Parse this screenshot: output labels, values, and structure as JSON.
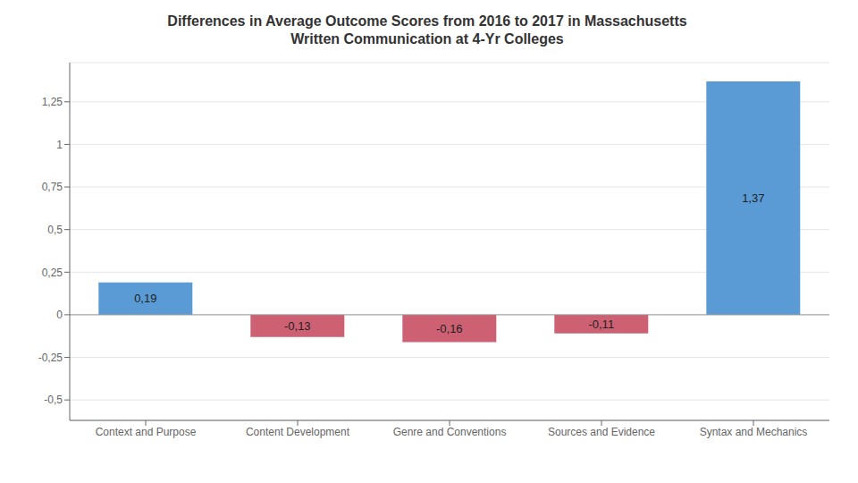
{
  "chart_data": {
    "type": "bar",
    "title": "Differences in Average Outcome Scores from 2016 to 2017 in Massachusetts\nWritten Communication at 4-Yr Colleges",
    "categories": [
      "Context and Purpose",
      "Content Development",
      "Genre and Conventions",
      "Sources and Evidence",
      "Syntax and Mechanics"
    ],
    "values": [
      0.19,
      -0.13,
      -0.16,
      -0.11,
      1.37
    ],
    "value_labels": [
      "0,19",
      "-0,13",
      "-0,16",
      "-0,11",
      "1,37"
    ],
    "data_labels": true,
    "colors": [
      "#5b9bd5",
      "#cd6072",
      "#cd6072",
      "#cd6072",
      "#5b9bd5"
    ],
    "ylim": [
      -0.62,
      1.48
    ],
    "yticks": [
      {
        "value": -0.5,
        "label": "-0,5"
      },
      {
        "value": -0.25,
        "label": "-0,25"
      },
      0,
      {
        "value": 0.25,
        "label": "0,25"
      },
      {
        "value": 0.5,
        "label": "0,5"
      },
      {
        "value": 0.75,
        "label": "0,75"
      },
      1,
      {
        "value": 1.25,
        "label": "1,25"
      }
    ],
    "grid": true
  }
}
